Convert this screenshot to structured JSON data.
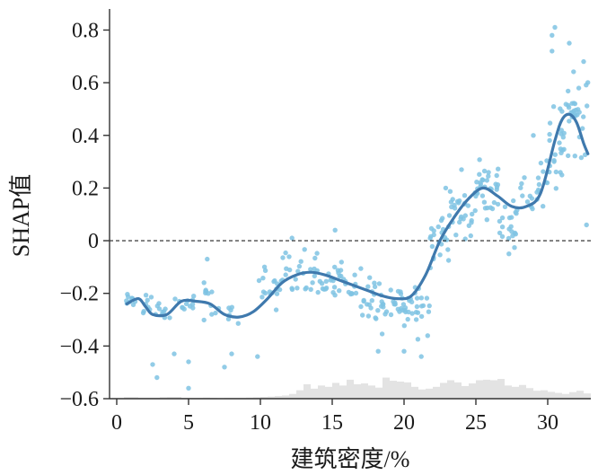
{
  "chart_data": {
    "type": "scatter",
    "xlabel": "建筑密度/%",
    "ylabel": "SHAP值",
    "xlim": [
      -0.5,
      33
    ],
    "ylim": [
      -0.6,
      0.88
    ],
    "x_ticks": [
      0,
      5,
      10,
      15,
      20,
      25,
      30
    ],
    "y_ticks": [
      -0.6,
      -0.4,
      -0.2,
      0,
      0.2,
      0.4,
      0.6,
      0.8
    ],
    "x_tick_labels": [
      "0",
      "5",
      "10",
      "15",
      "20",
      "25",
      "30"
    ],
    "y_tick_labels": [
      "−0.6",
      "−0.4",
      "−0.2",
      "0",
      "0.2",
      "0.4",
      "0.6",
      "0.8"
    ],
    "reference_line": {
      "y": 0,
      "style": "dashed"
    },
    "colors": {
      "points": "#7fc3e3",
      "trend": "#3f79ad",
      "histogram": "#e3e3e3",
      "reference": "#222222"
    },
    "point_clusters": [
      {
        "x": [
          0.6,
          1.3
        ],
        "y": [
          -0.27,
          -0.19
        ],
        "density": 10
      },
      {
        "x": [
          1.6,
          2.6
        ],
        "y": [
          -0.32,
          -0.15
        ],
        "density": 8
      },
      {
        "x": [
          2.6,
          3.8
        ],
        "y": [
          -0.36,
          -0.2
        ],
        "density": 10
      },
      {
        "x": [
          3.8,
          6.0
        ],
        "y": [
          -0.28,
          -0.2
        ],
        "density": 12
      },
      {
        "x": [
          6.0,
          6.8
        ],
        "y": [
          -0.33,
          -0.1
        ],
        "density": 10
      },
      {
        "x": [
          6.8,
          8.5
        ],
        "y": [
          -0.35,
          -0.22
        ],
        "density": 8
      },
      {
        "x": [
          9.8,
          11.5
        ],
        "y": [
          -0.3,
          -0.06
        ],
        "density": 18
      },
      {
        "x": [
          11.5,
          14.0
        ],
        "y": [
          -0.22,
          0.0
        ],
        "density": 26
      },
      {
        "x": [
          14.0,
          16.0
        ],
        "y": [
          -0.26,
          -0.04
        ],
        "density": 26
      },
      {
        "x": [
          16.0,
          18.0
        ],
        "y": [
          -0.34,
          -0.08
        ],
        "density": 24
      },
      {
        "x": [
          18.0,
          20.0
        ],
        "y": [
          -0.38,
          -0.12
        ],
        "density": 28
      },
      {
        "x": [
          20.0,
          21.8
        ],
        "y": [
          -0.4,
          -0.08
        ],
        "density": 28
      },
      {
        "x": [
          21.8,
          23.2
        ],
        "y": [
          -0.15,
          0.15
        ],
        "density": 24
      },
      {
        "x": [
          23.2,
          24.8
        ],
        "y": [
          -0.06,
          0.26
        ],
        "density": 26
      },
      {
        "x": [
          24.8,
          26.6
        ],
        "y": [
          0.06,
          0.34
        ],
        "density": 36
      },
      {
        "x": [
          26.6,
          28.0
        ],
        "y": [
          -0.05,
          0.2
        ],
        "density": 20
      },
      {
        "x": [
          28.0,
          30.0
        ],
        "y": [
          0.05,
          0.36
        ],
        "density": 22
      },
      {
        "x": [
          30.0,
          31.2
        ],
        "y": [
          0.1,
          0.6
        ],
        "density": 24
      },
      {
        "x": [
          31.2,
          32.8
        ],
        "y": [
          0.26,
          0.72
        ],
        "density": 30
      }
    ],
    "outliers": [
      [
        2.5,
        -0.47
      ],
      [
        2.8,
        -0.52
      ],
      [
        4.0,
        -0.43
      ],
      [
        5.0,
        -0.46
      ],
      [
        5.0,
        -0.56
      ],
      [
        7.5,
        -0.48
      ],
      [
        8.0,
        -0.43
      ],
      [
        9.8,
        -0.44
      ],
      [
        6.3,
        -0.07
      ],
      [
        12.2,
        0.01
      ],
      [
        15.2,
        0.04
      ],
      [
        18.2,
        -0.42
      ],
      [
        20.0,
        -0.42
      ],
      [
        21.2,
        -0.44
      ],
      [
        22.9,
        0.2
      ],
      [
        24.0,
        0.27
      ],
      [
        27.3,
        -0.05
      ],
      [
        29.0,
        0.4
      ],
      [
        30.3,
        0.72
      ],
      [
        30.3,
        0.78
      ],
      [
        30.5,
        0.81
      ],
      [
        31.5,
        0.75
      ],
      [
        32.5,
        0.68
      ],
      [
        32.7,
        0.06
      ],
      [
        31.9,
        0.52
      ]
    ],
    "trend": {
      "x": [
        0.7,
        1.5,
        2.0,
        2.5,
        3.5,
        4.5,
        5.5,
        6.5,
        7.5,
        8.5,
        9.5,
        10.5,
        11.5,
        12.5,
        13.5,
        14.5,
        15.5,
        16.5,
        17.5,
        18.5,
        19.5,
        20.5,
        21.5,
        22.5,
        23.5,
        24.5,
        25.5,
        26.5,
        27.5,
        28.5,
        29.5,
        30.5,
        31.0,
        31.5,
        32.0,
        32.5,
        32.8
      ],
      "y": [
        -0.24,
        -0.22,
        -0.25,
        -0.28,
        -0.28,
        -0.23,
        -0.23,
        -0.24,
        -0.28,
        -0.29,
        -0.27,
        -0.22,
        -0.16,
        -0.13,
        -0.12,
        -0.13,
        -0.15,
        -0.17,
        -0.19,
        -0.21,
        -0.22,
        -0.21,
        -0.13,
        0.0,
        0.09,
        0.16,
        0.2,
        0.17,
        0.13,
        0.13,
        0.18,
        0.38,
        0.46,
        0.48,
        0.45,
        0.37,
        0.33
      ]
    },
    "histogram": {
      "bin_width": 0.5,
      "bins_start": 0.5,
      "heights": [
        0.006,
        0.006,
        0.004,
        0.004,
        0.004,
        0.006,
        0.007,
        0.007,
        0.003,
        0.003,
        0.003,
        0.004,
        0.003,
        0.002,
        0.003,
        0.003,
        0.003,
        0.004,
        0.005,
        0.007,
        0.008,
        0.01,
        0.012,
        0.018,
        0.032,
        0.055,
        0.038,
        0.05,
        0.045,
        0.06,
        0.05,
        0.072,
        0.055,
        0.058,
        0.05,
        0.042,
        0.08,
        0.068,
        0.065,
        0.062,
        0.045,
        0.035,
        0.038,
        0.045,
        0.06,
        0.07,
        0.062,
        0.048,
        0.058,
        0.07,
        0.072,
        0.07,
        0.075,
        0.05,
        0.045,
        0.052,
        0.04,
        0.03,
        0.032,
        0.026,
        0.022,
        0.018,
        0.025,
        0.03,
        0.02
      ]
    }
  }
}
